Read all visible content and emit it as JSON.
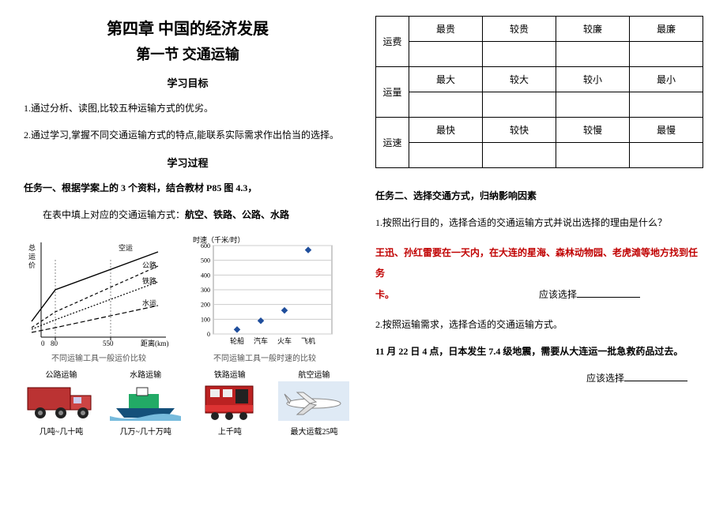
{
  "left": {
    "chapter_title": "第四章  中国的经济发展",
    "section_title": "第一节  交通运输",
    "goals_head": "学习目标",
    "goal1": "1.通过分析、读图,比较五种运输方式的优劣。",
    "goal2": "2.通过学习,掌握不同交通运输方式的特点,能联系实际需求作出恰当的选择。",
    "process_head": "学习过程",
    "task1": "任务一、根据学案上的 3 个资料，结合教材 P85 图 4.3，",
    "task1_fill_prefix": "在表中填上对应的交通运输方式：",
    "task1_fill_bold": "航空、铁路、公路、水路",
    "chart1": {
      "y_label": "总运价",
      "x_label": "距离(km)",
      "x_ticks": [
        "0",
        "80",
        "550"
      ],
      "lines": [
        {
          "label": "空运",
          "color": "#000",
          "dash": "",
          "points": [
            [
              10,
              110
            ],
            [
              40,
              70
            ],
            [
              170,
              22
            ]
          ]
        },
        {
          "label": "公路",
          "color": "#000",
          "dash": "4,3",
          "points": [
            [
              10,
              118
            ],
            [
              40,
              98
            ],
            [
              170,
              40
            ]
          ]
        },
        {
          "label": "铁路",
          "color": "#000",
          "dash": "2,2",
          "points": [
            [
              10,
              120
            ],
            [
              40,
              108
            ],
            [
              170,
              60
            ]
          ]
        },
        {
          "label": "水运",
          "color": "#000",
          "dash": "6,3",
          "points": [
            [
              10,
              124
            ],
            [
              40,
              118
            ],
            [
              170,
              90
            ]
          ]
        }
      ],
      "caption": "不同运输工具一般运价比较"
    },
    "chart2": {
      "y_label": "时速（千米/时）",
      "y_ticks": [
        "600",
        "500",
        "400",
        "300",
        "200",
        "100",
        "0"
      ],
      "categories": [
        "轮船",
        "汽车",
        "火车",
        "飞机"
      ],
      "values": [
        30,
        90,
        160,
        570
      ],
      "ylim": [
        0,
        600
      ],
      "marker_color": "#1f4e9c",
      "caption": "不同运输工具一般时速的比较"
    },
    "transports": [
      {
        "top": "公路运输",
        "bottom": "几吨~几十吨",
        "type": "truck"
      },
      {
        "top": "水路运输",
        "bottom": "几万~几十万吨",
        "type": "ship"
      },
      {
        "top": "铁路运输",
        "bottom": "上千吨",
        "type": "train"
      },
      {
        "top": "航空运输",
        "bottom": "最大运载25吨",
        "type": "plane"
      }
    ]
  },
  "right": {
    "table": {
      "rows": [
        "运费",
        "运量",
        "运速"
      ],
      "cols": [
        [
          "最贵",
          "较贵",
          "较廉",
          "最廉"
        ],
        [
          "最大",
          "较大",
          "较小",
          "最小"
        ],
        [
          "最快",
          "较快",
          "较慢",
          "最慢"
        ]
      ]
    },
    "task2": "任务二、选择交通方式，归纳影响因素",
    "q1": "1.按照出行目的，选择合适的交通运输方式并说出选择的理由是什么？",
    "q1_scenario_a": "王迅、孙红雷要在一天内，在大连的星海、森林动物园、老虎滩等地方找到任务",
    "q1_scenario_b": "卡。",
    "answer_label": "应该选择",
    "q2_intro": "2.按照运输需求，选择合适的交通运输方式。",
    "q2_scenario": "11 月 22 日 4 点，日本发生 7.4 级地震，需要从大连运一批急救药品过去。"
  }
}
